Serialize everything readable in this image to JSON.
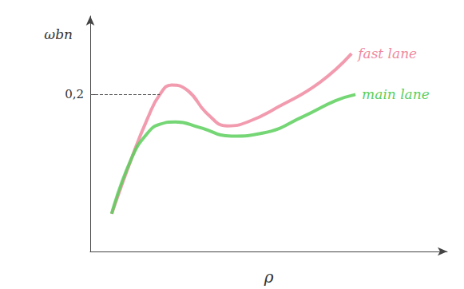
{
  "chart_data": {
    "type": "line",
    "x_label": "ρ",
    "y_label": "ωbn",
    "xlim": [
      0,
      10
    ],
    "ylim": [
      0,
      0.3
    ],
    "yticks": [
      {
        "value": 0.2,
        "label": "0,2"
      }
    ],
    "tick_labels": "y",
    "series": [
      {
        "name": "fast lane",
        "color": "#f08aa0",
        "x": [
          0.6,
          1.16,
          1.61,
          1.95,
          2.28,
          2.73,
          3.29,
          3.85,
          4.41,
          5.3,
          6.42,
          7.32
        ],
        "values": [
          0.048,
          0.119,
          0.17,
          0.2,
          0.212,
          0.205,
          0.175,
          0.16,
          0.165,
          0.185,
          0.215,
          0.252
        ]
      },
      {
        "name": "main lane",
        "color": "#5ccf5c",
        "x": [
          0.6,
          1.16,
          1.61,
          1.95,
          2.39,
          3.06,
          3.96,
          4.85,
          5.97,
          6.87,
          7.43
        ],
        "values": [
          0.048,
          0.119,
          0.151,
          0.162,
          0.165,
          0.158,
          0.147,
          0.151,
          0.172,
          0.192,
          0.2
        ]
      }
    ]
  }
}
